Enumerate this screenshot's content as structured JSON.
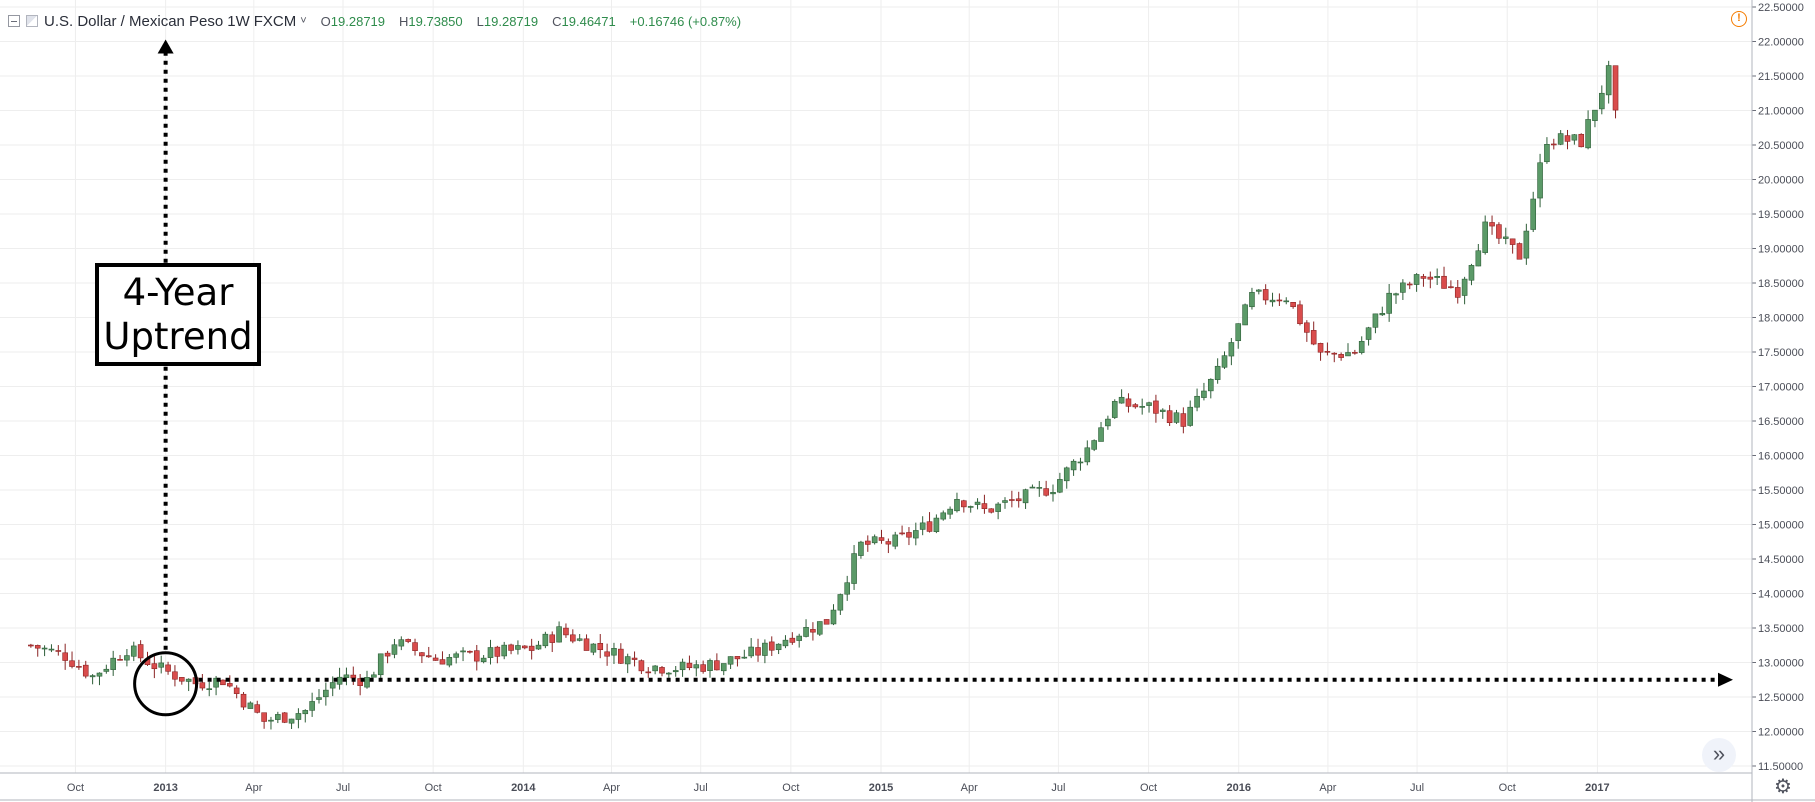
{
  "header": {
    "symbol": "U.S. Dollar / Mexican Peso",
    "interval": "1W",
    "source": "FXCM",
    "caret": "˅",
    "ohlc": {
      "o_label": "O",
      "o_value": "19.28719",
      "h_label": "H",
      "h_value": "19.73850",
      "l_label": "L",
      "l_value": "19.28719",
      "c_label": "C",
      "c_value": "19.46471",
      "change": "+0.16746 (+0.87%)"
    }
  },
  "annotation": {
    "line1": "4-Year",
    "line2": "Uptrend"
  },
  "icons": {
    "collapse": "collapse-icon",
    "flag": "symbol-flag-icon",
    "warning": "warning-icon",
    "warning_glyph": "!",
    "scroll_forward": "double-chevron-right-icon",
    "scroll_glyph": "»",
    "settings": "gear-icon",
    "settings_glyph": "⚙"
  },
  "colors": {
    "up": "#5b9a68",
    "down": "#d94c4c",
    "up_border": "#2e5e38",
    "down_border": "#8a2323",
    "grid": "#eeeeee",
    "annotation": "#000000"
  },
  "chart_data": {
    "type": "candlestick",
    "title": "U.S. Dollar / Mexican Peso, 1W, FXCM",
    "xlabel": "",
    "ylabel": "",
    "x_ticks": [
      "Oct",
      "2013",
      "Apr",
      "Jul",
      "Oct",
      "2014",
      "Apr",
      "Jul",
      "Oct",
      "2015",
      "Apr",
      "Jul",
      "Oct",
      "2016",
      "Apr",
      "Jul",
      "Oct",
      "2017"
    ],
    "y_ticks": [
      "11.50000",
      "12.00000",
      "12.50000",
      "13.00000",
      "13.50000",
      "14.00000",
      "14.50000",
      "15.00000",
      "15.50000",
      "16.00000",
      "16.50000",
      "17.00000",
      "17.50000",
      "18.00000",
      "18.50000",
      "19.00000",
      "19.50000",
      "20.00000",
      "20.50000",
      "21.00000",
      "21.50000",
      "22.00000",
      "22.50000"
    ],
    "ylim": [
      11.5,
      22.6
    ],
    "grid": true,
    "annotations": [
      "4-Year Uptrend",
      "dotted arrow up from early 2013 low",
      "dotted horizontal arrow at 12.75"
    ],
    "close_path": [
      {
        "x": "2012-08-13",
        "close": 13.25
      },
      {
        "x": "2012-09-17",
        "close": 13.1
      },
      {
        "x": "2012-10-15",
        "close": 12.8
      },
      {
        "x": "2012-11-19",
        "close": 13.2
      },
      {
        "x": "2012-12-24",
        "close": 12.9
      },
      {
        "x": "2013-01-28",
        "close": 12.7
      },
      {
        "x": "2013-02-25",
        "close": 12.75
      },
      {
        "x": "2013-04-08",
        "close": 12.15
      },
      {
        "x": "2013-05-20",
        "close": 12.3
      },
      {
        "x": "2013-06-24",
        "close": 12.8
      },
      {
        "x": "2013-07-22",
        "close": 12.75
      },
      {
        "x": "2013-08-19",
        "close": 13.3
      },
      {
        "x": "2013-09-30",
        "close": 13.05
      },
      {
        "x": "2013-11-11",
        "close": 13.1
      },
      {
        "x": "2014-01-06",
        "close": 13.2
      },
      {
        "x": "2014-02-03",
        "close": 13.45
      },
      {
        "x": "2014-03-17",
        "close": 13.2
      },
      {
        "x": "2014-05-05",
        "close": 12.95
      },
      {
        "x": "2014-06-09",
        "close": 12.92
      },
      {
        "x": "2014-07-14",
        "close": 12.98
      },
      {
        "x": "2014-08-25",
        "close": 13.15
      },
      {
        "x": "2014-09-29",
        "close": 13.4
      },
      {
        "x": "2014-11-03",
        "close": 13.6
      },
      {
        "x": "2014-12-08",
        "close": 14.7
      },
      {
        "x": "2015-01-12",
        "close": 14.75
      },
      {
        "x": "2015-02-16",
        "close": 15.0
      },
      {
        "x": "2015-03-16",
        "close": 15.4
      },
      {
        "x": "2015-04-13",
        "close": 15.2
      },
      {
        "x": "2015-05-25",
        "close": 15.4
      },
      {
        "x": "2015-06-22",
        "close": 15.55
      },
      {
        "x": "2015-07-27",
        "close": 16.1
      },
      {
        "x": "2015-08-24",
        "close": 16.75
      },
      {
        "x": "2015-09-28",
        "close": 16.7
      },
      {
        "x": "2015-11-02",
        "close": 16.5
      },
      {
        "x": "2015-12-07",
        "close": 17.2
      },
      {
        "x": "2016-01-11",
        "close": 18.3
      },
      {
        "x": "2016-02-15",
        "close": 18.3
      },
      {
        "x": "2016-03-21",
        "close": 17.45
      },
      {
        "x": "2016-04-25",
        "close": 17.5
      },
      {
        "x": "2016-05-30",
        "close": 18.3
      },
      {
        "x": "2016-07-04",
        "close": 18.6
      },
      {
        "x": "2016-08-08",
        "close": 18.4
      },
      {
        "x": "2016-09-05",
        "close": 19.3
      },
      {
        "x": "2016-10-10",
        "close": 18.9
      },
      {
        "x": "2016-11-07",
        "close": 20.6
      },
      {
        "x": "2016-12-12",
        "close": 20.55
      },
      {
        "x": "2017-01-09",
        "close": 21.55
      },
      {
        "x": "2017-01-16",
        "close": 20.9
      }
    ]
  }
}
